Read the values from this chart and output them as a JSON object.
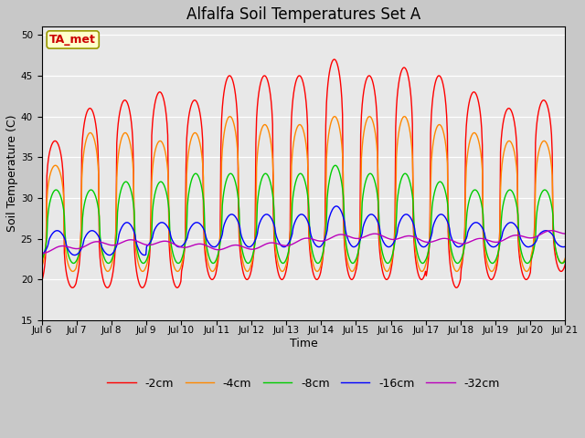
{
  "title": "Alfalfa Soil Temperatures Set A",
  "xlabel": "Time",
  "ylabel": "Soil Temperature (C)",
  "ylim": [
    15,
    51
  ],
  "yticks": [
    15,
    20,
    25,
    30,
    35,
    40,
    45,
    50
  ],
  "xtick_labels": [
    "Jul 6",
    "Jul 7",
    "Jul 8",
    "Jul 9",
    "Jul 10",
    "Jul 11",
    "Jul 12",
    "Jul 13",
    "Jul 14",
    "Jul 15",
    "Jul 16",
    "Jul 17",
    "Jul 18",
    "Jul 19",
    "Jul 20",
    "Jul 21"
  ],
  "legend_labels": [
    "-2cm",
    "-4cm",
    "-8cm",
    "-16cm",
    "-32cm"
  ],
  "colors": [
    "#ff0000",
    "#ff8800",
    "#00cc00",
    "#0000ff",
    "#bb00bb"
  ],
  "annotation_text": "TA_met",
  "annotation_color": "#cc0000",
  "annotation_bg": "#ffffcc",
  "plot_bg": "#e8e8e8",
  "fig_bg": "#d8d8d8",
  "n_days": 15,
  "samples_per_day": 48,
  "figsize": [
    6.4,
    4.8
  ],
  "dpi": 100
}
